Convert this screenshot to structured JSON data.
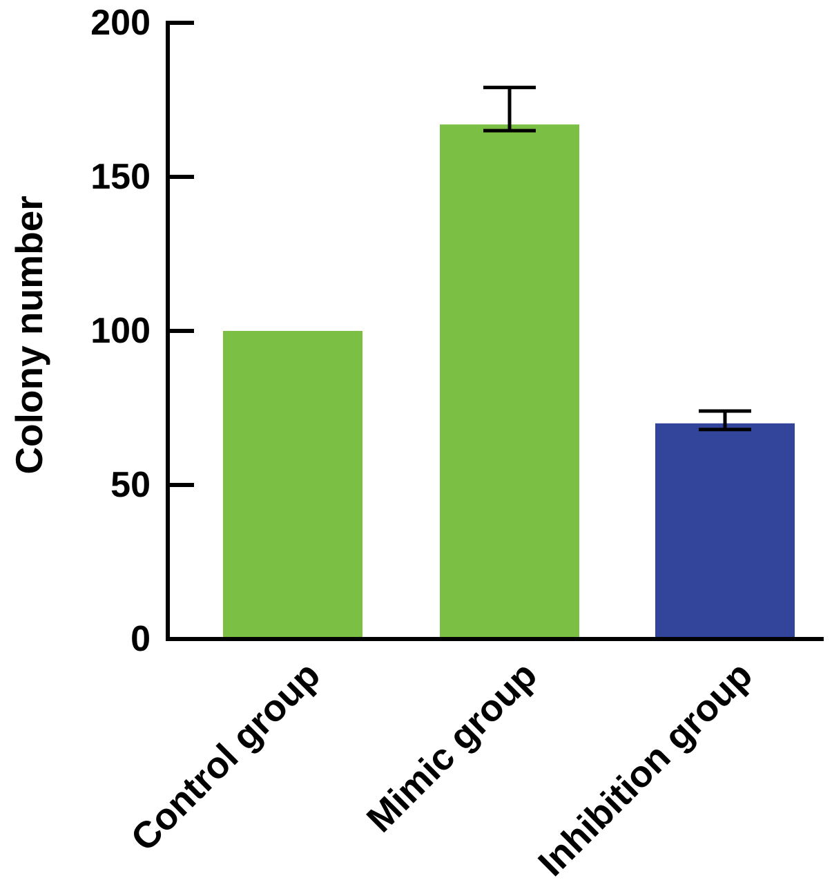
{
  "chart_data": {
    "type": "bar",
    "title": "",
    "xlabel": "",
    "ylabel": "Colony number",
    "ylim": [
      0,
      200
    ],
    "yticks": [
      0,
      50,
      100,
      150,
      200
    ],
    "grid": false,
    "legend": "none",
    "categories": [
      "Control group",
      "Mimic group",
      "Inhibition group"
    ],
    "values": [
      100,
      167,
      70
    ],
    "error_upper": [
      0,
      12,
      4
    ],
    "error_lower": [
      0,
      2,
      2
    ],
    "bar_colors": [
      "#7bbf45",
      "#7bbf45",
      "#32459a"
    ],
    "axis_color": "#000000"
  }
}
